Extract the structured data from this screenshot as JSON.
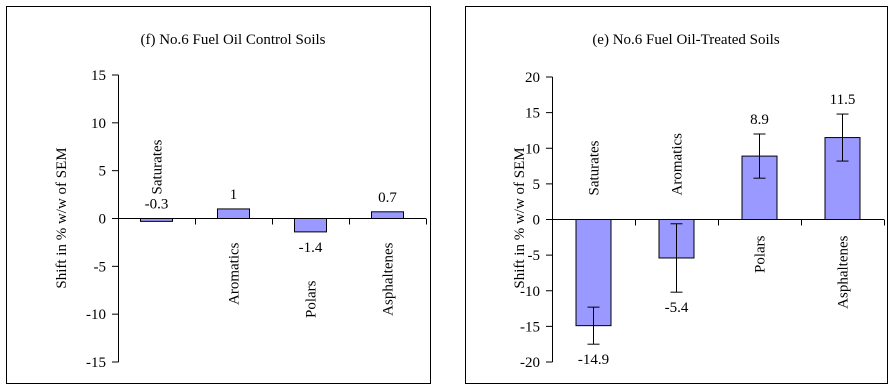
{
  "chart_data": [
    {
      "type": "bar",
      "title": "(f)  No.6 Fuel Oil Control Soils",
      "ylabel": "Shift in % w/w of SEM",
      "xlabel": "",
      "categories": [
        "Saturates",
        "Aromatics",
        "Polars",
        "Asphaltenes"
      ],
      "values": [
        -0.3,
        1,
        -1.4,
        0.7
      ],
      "data_labels": [
        "-0.3",
        "1",
        "-1.4",
        "0.7"
      ],
      "error_bars": null,
      "ylim": [
        -15,
        15
      ],
      "yticks": [
        -15,
        -10,
        -5,
        0,
        5,
        10,
        15
      ],
      "ytick_labels": [
        "-15",
        "-10",
        "-5",
        "0",
        "5",
        "10",
        "15"
      ],
      "grid": false,
      "legend": "none",
      "bar_color": "#9999ff",
      "bar_edge_color": "#000000"
    },
    {
      "type": "bar",
      "title": "(e)  No.6 Fuel Oil-Treated Soils",
      "ylabel": "Shift in % w/w of SEM",
      "xlabel": "",
      "categories": [
        "Saturates",
        "Aromatics",
        "Polars",
        "Asphaltenes"
      ],
      "values": [
        -14.9,
        -5.4,
        8.9,
        11.5
      ],
      "data_labels": [
        "-14.9",
        "-5.4",
        "8.9",
        "11.5"
      ],
      "error_bars": [
        2.6,
        4.8,
        3.1,
        3.3
      ],
      "ylim": [
        -20,
        20
      ],
      "yticks": [
        -20,
        -15,
        -10,
        -5,
        0,
        5,
        10,
        15,
        20
      ],
      "ytick_labels": [
        "-20",
        "-15",
        "-10",
        "-5",
        "0",
        "5",
        "10",
        "15",
        "20"
      ],
      "grid": false,
      "legend": "none",
      "bar_color": "#9999ff",
      "bar_edge_color": "#000000"
    }
  ]
}
